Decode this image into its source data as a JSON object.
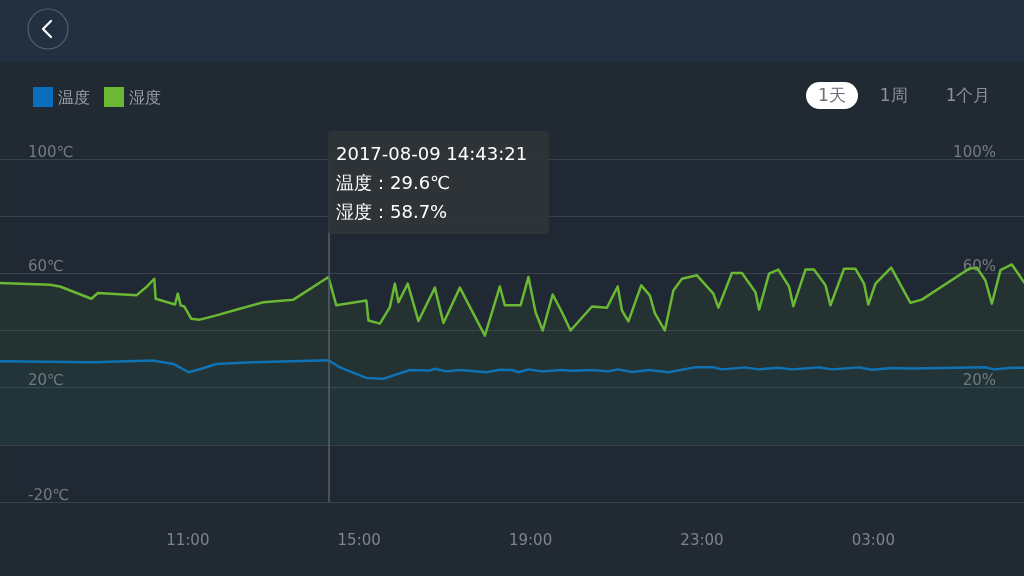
{
  "chart_data": {
    "type": "area",
    "x": [
      "2017-08-09T06:37",
      "2017-08-09T08:47",
      "2017-08-09T10:11",
      "2017-08-09T10:40",
      "2017-08-09T11:01",
      "2017-08-09T11:19",
      "2017-08-09T11:40",
      "2017-08-09T12:31",
      "2017-08-09T14:17",
      "2017-08-09T14:33",
      "2017-08-09T15:10",
      "2017-08-09T15:34",
      "2017-08-09T15:47",
      "2017-08-09T16:11",
      "2017-08-09T16:39",
      "2017-08-09T16:46",
      "2017-08-09T17:02",
      "2017-08-09T17:21",
      "2017-08-09T17:58",
      "2017-08-09T18:17",
      "2017-08-09T18:34",
      "2017-08-09T18:43",
      "2017-08-09T18:57",
      "2017-08-09T19:16",
      "2017-08-09T19:44",
      "2017-08-09T19:58",
      "2017-08-09T20:26",
      "2017-08-09T20:49",
      "2017-08-09T21:02",
      "2017-08-09T21:22",
      "2017-08-09T21:46",
      "2017-08-09T22:13",
      "2017-08-09T22:50",
      "2017-08-09T23:16",
      "2017-08-09T23:28",
      "2017-08-10T00:01",
      "2017-08-10T00:19",
      "2017-08-10T00:47",
      "2017-08-10T01:06",
      "2017-08-10T01:44",
      "2017-08-10T02:02",
      "2017-08-10T02:40",
      "2017-08-10T02:58",
      "2017-08-10T03:26",
      "2017-08-10T03:54",
      "2017-08-10T05:37",
      "2017-08-10T05:49",
      "2017-08-10T06:14",
      "2017-08-10T06:31"
    ],
    "series": [
      {
        "name": "温度",
        "color": "#0a6ebd",
        "values": [
          29.2,
          28.9,
          29.5,
          28.3,
          25.4,
          26.6,
          28.3,
          28.9,
          29.6,
          27.1,
          23.4,
          23.1,
          24.2,
          26.2,
          26.0,
          26.6,
          25.7,
          26.2,
          25.4,
          26.3,
          26.2,
          25.4,
          26.4,
          25.7,
          26.2,
          25.9,
          26.2,
          25.7,
          26.4,
          25.5,
          26.2,
          25.4,
          27.1,
          27.1,
          26.4,
          27.1,
          26.4,
          27.0,
          26.4,
          27.1,
          26.4,
          27.1,
          26.3,
          26.9,
          26.7,
          27.1,
          26.4,
          27.0,
          27.0
        ]
      },
      {
        "name": "湿度",
        "color": "#6ab833",
        "axis": "y2",
        "x": [
          "2017-08-09T06:37",
          "2017-08-09T07:47",
          "2017-08-09T08:01",
          "2017-08-09T08:45",
          "2017-08-09T08:54",
          "2017-08-09T09:48",
          "2017-08-09T10:02",
          "2017-08-09T10:13",
          "2017-08-09T10:15",
          "2017-08-09T10:42",
          "2017-08-09T10:46",
          "2017-08-09T10:50",
          "2017-08-09T10:55",
          "2017-08-09T11:05",
          "2017-08-09T11:17",
          "2017-08-09T11:40",
          "2017-08-09T12:04",
          "2017-08-09T12:46",
          "2017-08-09T13:28",
          "2017-08-09T14:17",
          "2017-08-09T14:28",
          "2017-08-09T15:10",
          "2017-08-09T15:13",
          "2017-08-09T15:29",
          "2017-08-09T15:43",
          "2017-08-09T15:50",
          "2017-08-09T15:55",
          "2017-08-09T16:08",
          "2017-08-09T16:23",
          "2017-08-09T16:46",
          "2017-08-09T16:58",
          "2017-08-09T17:21",
          "2017-08-09T17:56",
          "2017-08-09T18:17",
          "2017-08-09T18:24",
          "2017-08-09T18:46",
          "2017-08-09T18:57",
          "2017-08-09T19:07",
          "2017-08-09T19:17",
          "2017-08-09T19:31",
          "2017-08-09T19:44",
          "2017-08-09T19:56",
          "2017-08-09T20:26",
          "2017-08-09T20:47",
          "2017-08-09T21:02",
          "2017-08-09T21:08",
          "2017-08-09T21:17",
          "2017-08-09T21:35",
          "2017-08-09T21:47",
          "2017-08-09T21:54",
          "2017-08-09T22:08",
          "2017-08-09T22:20",
          "2017-08-09T22:32",
          "2017-08-09T22:53",
          "2017-08-09T23:16",
          "2017-08-09T23:23",
          "2017-08-09T23:42",
          "2017-08-09T23:56",
          "2017-08-10T00:15",
          "2017-08-10T00:20",
          "2017-08-10T00:34",
          "2017-08-10T00:47",
          "2017-08-10T01:02",
          "2017-08-10T01:08",
          "2017-08-10T01:25",
          "2017-08-10T01:37",
          "2017-08-10T01:53",
          "2017-08-10T02:00",
          "2017-08-10T02:19",
          "2017-08-10T02:35",
          "2017-08-10T02:47",
          "2017-08-10T02:53",
          "2017-08-10T03:03",
          "2017-08-10T03:25",
          "2017-08-10T03:52",
          "2017-08-10T04:08",
          "2017-08-10T05:14",
          "2017-08-10T05:25",
          "2017-08-10T05:37",
          "2017-08-10T05:46",
          "2017-08-10T05:58",
          "2017-08-10T06:14",
          "2017-08-10T06:31"
        ],
        "values": [
          56.6,
          56.0,
          55.4,
          51.1,
          53.1,
          52.3,
          55.2,
          58.1,
          51.1,
          49.1,
          52.9,
          48.8,
          48.4,
          44.1,
          43.8,
          45.3,
          47.0,
          49.9,
          50.8,
          58.7,
          48.8,
          50.5,
          43.5,
          42.4,
          48.2,
          56.4,
          49.9,
          56.4,
          43.3,
          55.0,
          42.6,
          55.0,
          38.2,
          55.4,
          48.8,
          48.8,
          58.7,
          46.4,
          40.0,
          52.6,
          46.4,
          40.0,
          48.4,
          48.0,
          55.4,
          47.0,
          43.2,
          55.8,
          52.3,
          46.1,
          40.0,
          54.0,
          58.1,
          59.3,
          52.9,
          48.0,
          60.1,
          60.1,
          53.4,
          47.3,
          59.9,
          61.3,
          55.4,
          48.5,
          61.3,
          61.3,
          55.8,
          48.8,
          61.6,
          61.6,
          56.4,
          49.1,
          56.4,
          62.0,
          49.7,
          50.8,
          61.6,
          62.0,
          57.5,
          49.4,
          61.1,
          63.1,
          56.9
        ]
      }
    ],
    "xlim": [
      "2017-08-09T06:37",
      "2017-08-10T06:31"
    ],
    "xticks": [
      {
        "value": "2017-08-09T11:00",
        "label": "11:00"
      },
      {
        "value": "2017-08-09T15:00",
        "label": "15:00"
      },
      {
        "value": "2017-08-09T19:00",
        "label": "19:00"
      },
      {
        "value": "2017-08-09T23:00",
        "label": "23:00"
      },
      {
        "value": "2017-08-10T03:00",
        "label": "03:00"
      }
    ],
    "ylim": [
      -20,
      100
    ],
    "yticks": [
      {
        "value": -20,
        "label": "-20℃"
      },
      {
        "value": 0,
        "label": null
      },
      {
        "value": 20,
        "label": "20℃"
      },
      {
        "value": 40,
        "label": null
      },
      {
        "value": 60,
        "label": "60℃"
      },
      {
        "value": 80,
        "label": null
      },
      {
        "value": 100,
        "label": "100℃"
      }
    ],
    "y2lim": [
      -20,
      100
    ],
    "y2ticks": [
      {
        "value": -20,
        "label": null
      },
      {
        "value": 0,
        "label": null
      },
      {
        "value": 20,
        "label": "20%"
      },
      {
        "value": 40,
        "label": null
      },
      {
        "value": 60,
        "label": "60%"
      },
      {
        "value": 80,
        "label": null
      },
      {
        "value": 100,
        "label": "100%"
      }
    ],
    "grid": "y",
    "legend": "top left",
    "marker": "none",
    "line_style": "solid",
    "ref_lines": [
      {
        "axis": "x",
        "value": "2017-08-09T14:17",
        "color": "#5a5f66"
      }
    ],
    "annotations": [
      "2017-08-09 14:43:21",
      "温度：29.6℃",
      "湿度：58.7%",
      "1天",
      "1周",
      "1个月"
    ]
  }
}
